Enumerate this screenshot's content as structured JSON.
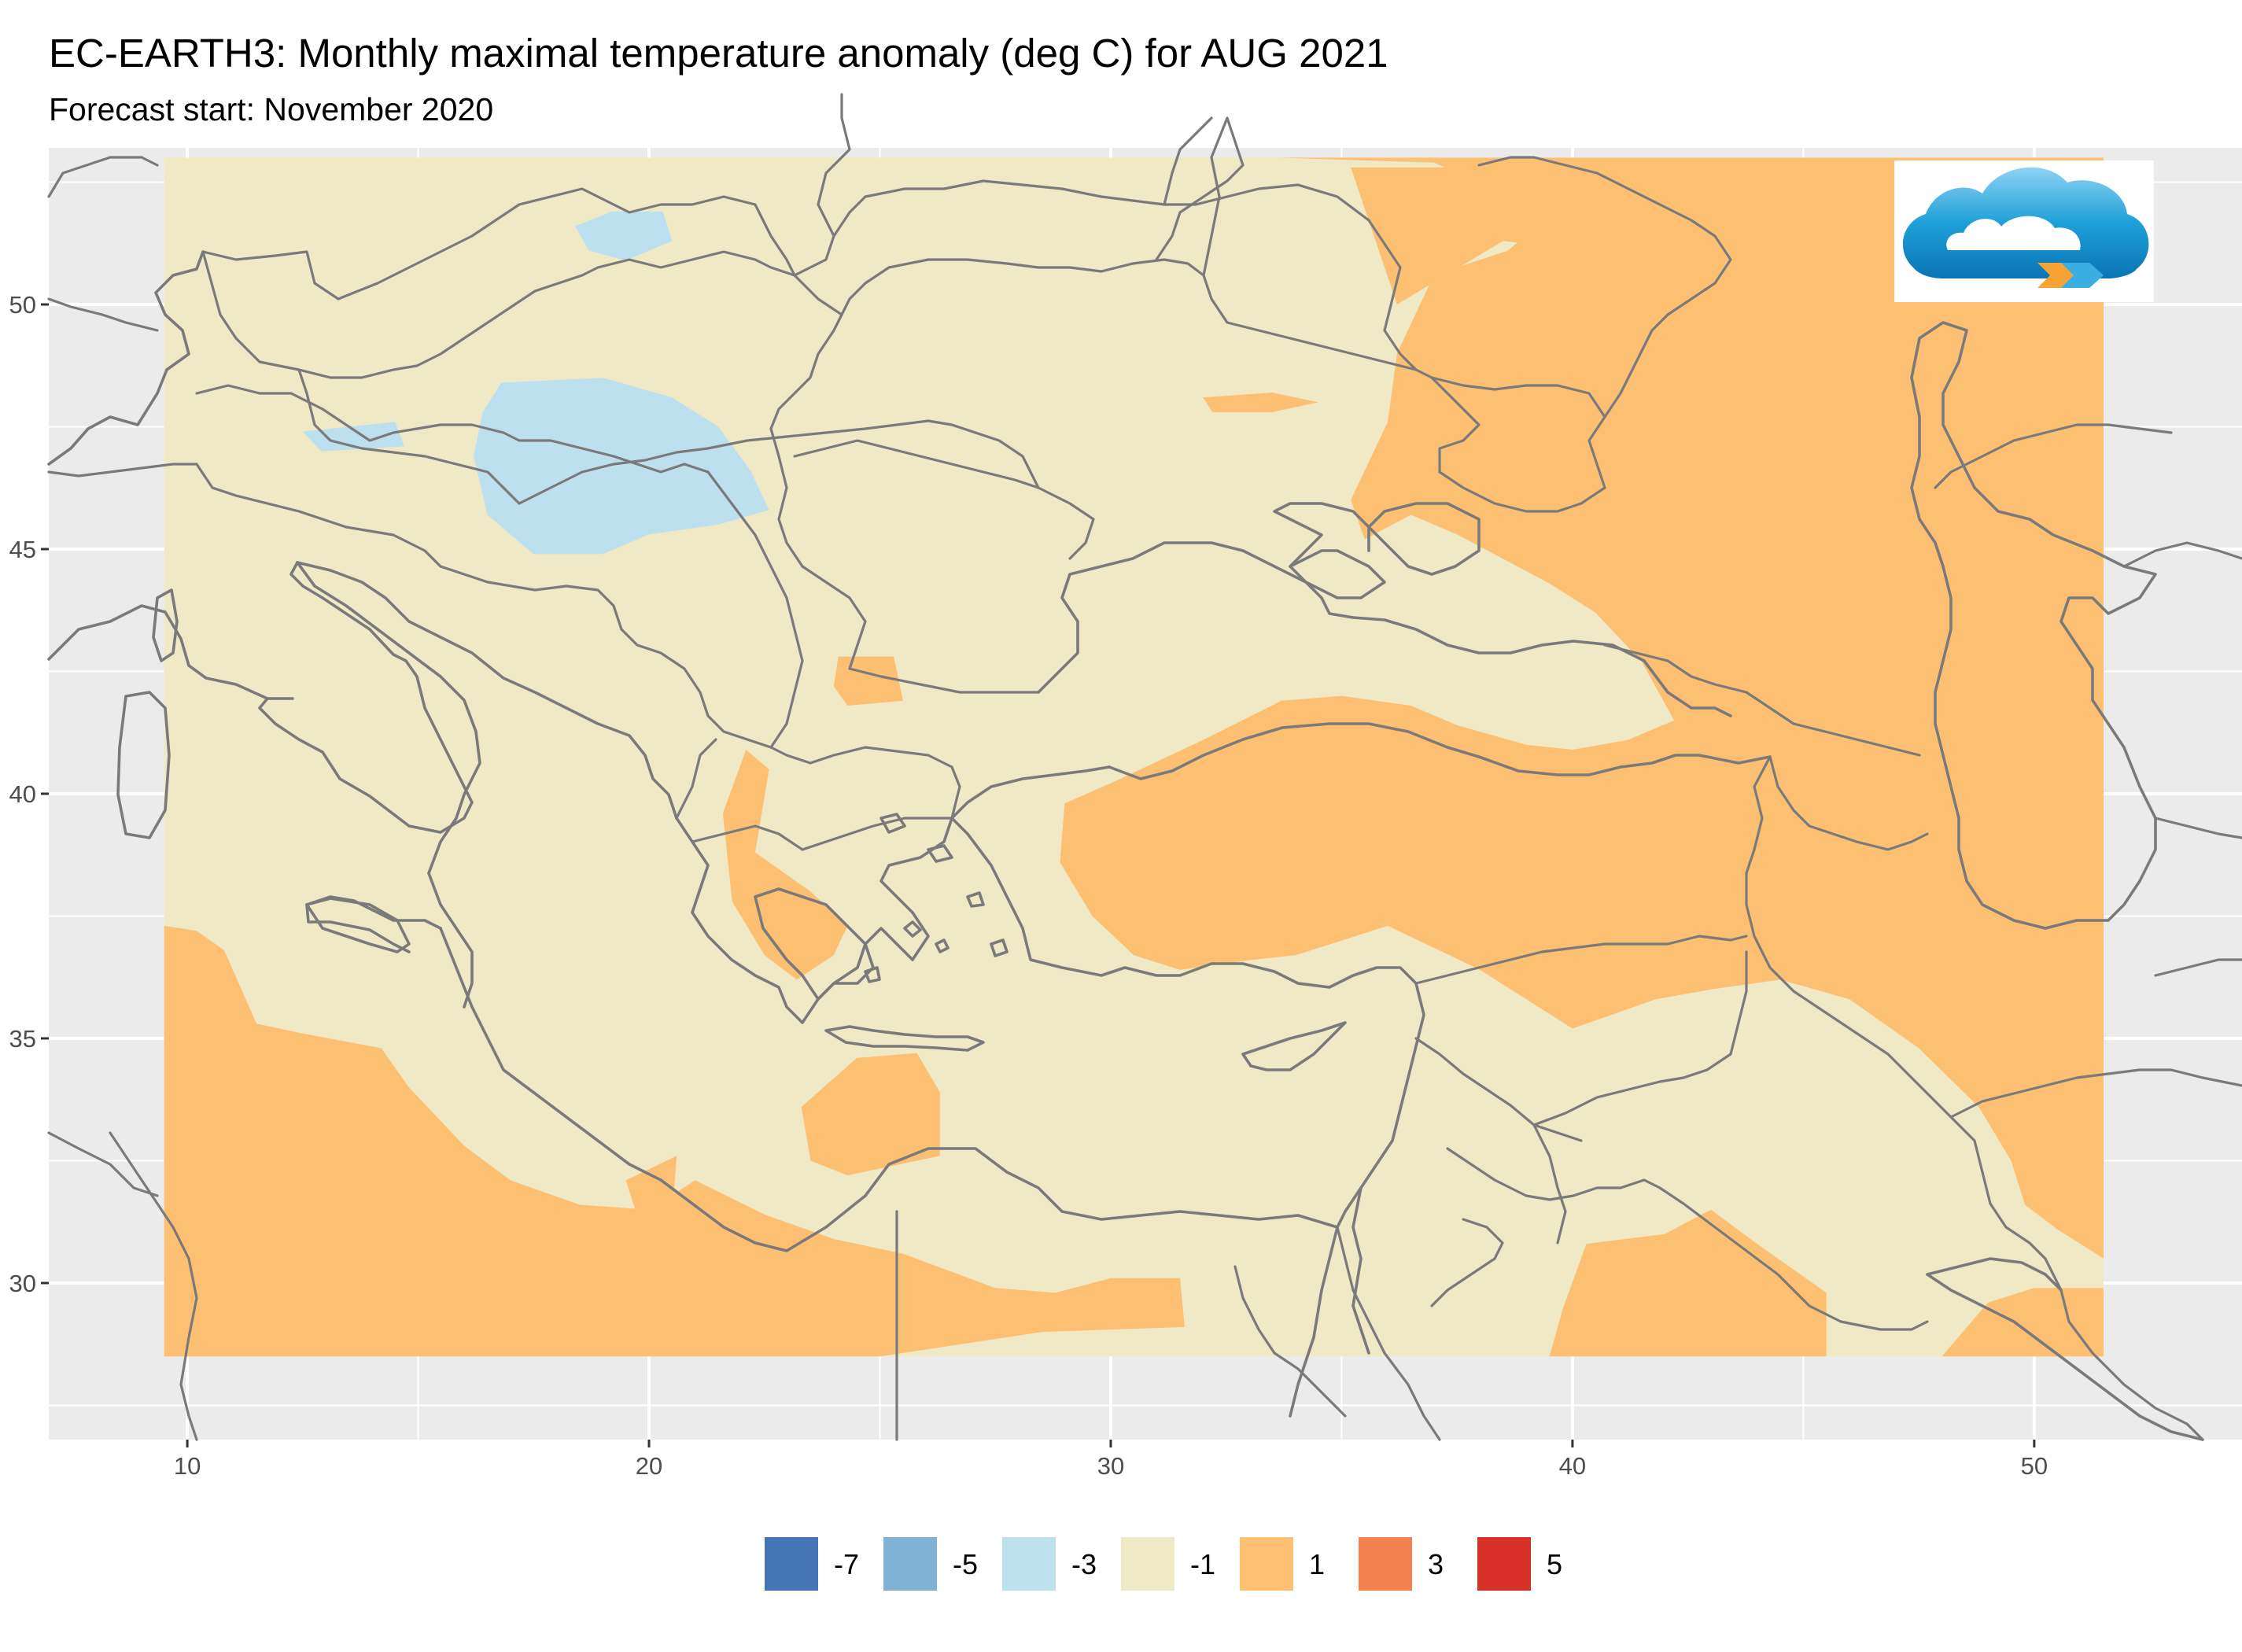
{
  "header": {
    "title": "EC-EARTH3: Monthly maximal temperature anomaly (deg C) for AUG 2021",
    "subtitle": "Forecast start: November 2020"
  },
  "map": {
    "x_axis": {
      "ticks": [
        10,
        20,
        30,
        40,
        50
      ],
      "range": [
        7,
        54.5
      ]
    },
    "y_axis": {
      "ticks": [
        30,
        35,
        40,
        45,
        50
      ],
      "range": [
        26.8,
        53.2
      ]
    },
    "grid": true,
    "panel_color": "#ebebeb",
    "data_extent": {
      "lon": [
        9.5,
        51.5
      ],
      "lat": [
        28.5,
        53.0
      ]
    },
    "logo": "cloud-logo"
  },
  "legend": {
    "position": "bottom",
    "items": [
      {
        "label": "-7",
        "color": "#4575b4"
      },
      {
        "label": "-5",
        "color": "#7fb2d5"
      },
      {
        "label": "-3",
        "color": "#bde0ef"
      },
      {
        "label": "-1",
        "color": "#efe9c6"
      },
      {
        "label": "1",
        "color": "#fdbf72"
      },
      {
        "label": "3",
        "color": "#f58150"
      },
      {
        "label": "5",
        "color": "#d73027"
      }
    ]
  },
  "chart_data": {
    "type": "heatmap",
    "title": "EC-EARTH3: Monthly maximal temperature anomaly (deg C) for AUG 2021",
    "subtitle": "Forecast start: November 2020",
    "xlabel": "",
    "ylabel": "",
    "xlim": [
      7,
      54.5
    ],
    "ylim": [
      26.8,
      53.2
    ],
    "x_ticks": [
      10,
      20,
      30,
      40,
      50
    ],
    "y_ticks": [
      30,
      35,
      40,
      45,
      50
    ],
    "base_level": "-1",
    "regions": [
      {
        "level": "1",
        "lonlat": [
          [
            33.6,
            53
          ],
          [
            51.5,
            53
          ],
          [
            51.5,
            28.5
          ],
          [
            45.5,
            28.5
          ],
          [
            45.5,
            29.8
          ],
          [
            44,
            30.8
          ],
          [
            43,
            31.5
          ],
          [
            42,
            31
          ],
          [
            40.3,
            30.8
          ],
          [
            39.8,
            29.5
          ],
          [
            39.5,
            28.5
          ],
          [
            48,
            28.5
          ],
          [
            49,
            29.6
          ],
          [
            50,
            29.9
          ],
          [
            51.5,
            29.9
          ],
          [
            51.5,
            30.5
          ],
          [
            50.5,
            31.1
          ],
          [
            49.8,
            31.6
          ],
          [
            49.5,
            32.5
          ],
          [
            48.8,
            33.6
          ],
          [
            47.5,
            34.8
          ],
          [
            46,
            35.8
          ],
          [
            44.5,
            36.2
          ],
          [
            43,
            36
          ],
          [
            41.8,
            35.8
          ],
          [
            40,
            35.2
          ],
          [
            38,
            36.4
          ],
          [
            36,
            37.3
          ],
          [
            34,
            36.7
          ],
          [
            33,
            36.6
          ],
          [
            31.5,
            36.4
          ],
          [
            30.5,
            36.7
          ],
          [
            29.6,
            37.5
          ],
          [
            28.9,
            38.6
          ],
          [
            29,
            39.8
          ],
          [
            30.2,
            40.3
          ],
          [
            32,
            41.1
          ],
          [
            33.7,
            41.9
          ],
          [
            35,
            42
          ],
          [
            36.5,
            41.8
          ],
          [
            37.5,
            41.4
          ],
          [
            39,
            41
          ],
          [
            40,
            40.9
          ],
          [
            41.2,
            41.1
          ],
          [
            42.2,
            41.5
          ],
          [
            41.5,
            42.7
          ],
          [
            40.5,
            43.7
          ],
          [
            39.5,
            44.3
          ],
          [
            38.5,
            44.8
          ],
          [
            37.5,
            45.3
          ],
          [
            36.5,
            45.7
          ],
          [
            35.5,
            45.2
          ],
          [
            35.2,
            46
          ],
          [
            36,
            47.6
          ],
          [
            36.2,
            49
          ],
          [
            37,
            50.6
          ],
          [
            38.6,
            51.1
          ],
          [
            39.7,
            52
          ],
          [
            38.5,
            52.3
          ],
          [
            37,
            52.9
          ]
        ]
      },
      {
        "level": "1",
        "lonlat": [
          [
            35.2,
            52.8
          ],
          [
            41,
            52.8
          ],
          [
            41,
            51
          ],
          [
            38.5,
            51.3
          ],
          [
            36.2,
            50
          ]
        ]
      },
      {
        "level": "1",
        "lonlat": [
          [
            9.5,
            37.3
          ],
          [
            10.2,
            37.2
          ],
          [
            10.8,
            36.8
          ],
          [
            11.5,
            35.3
          ],
          [
            12.5,
            35.1
          ],
          [
            14.2,
            34.8
          ],
          [
            14.8,
            34
          ],
          [
            16,
            32.8
          ],
          [
            17,
            32.1
          ],
          [
            18.5,
            31.6
          ],
          [
            20,
            31.5
          ],
          [
            21,
            32.1
          ],
          [
            22.5,
            31.4
          ],
          [
            24,
            30.9
          ],
          [
            25.5,
            30.6
          ],
          [
            27.5,
            29.9
          ],
          [
            28.8,
            29.8
          ],
          [
            30,
            30.1
          ],
          [
            31.5,
            30.1
          ],
          [
            31.6,
            29.1
          ],
          [
            28.5,
            29
          ],
          [
            25,
            28.5
          ],
          [
            9.5,
            28.5
          ]
        ]
      },
      {
        "level": "1",
        "lonlat": [
          [
            19.5,
            32.1
          ],
          [
            20.6,
            32.6
          ],
          [
            20.5,
            31.4
          ],
          [
            19.8,
            31.2
          ]
        ]
      },
      {
        "level": "1",
        "lonlat": [
          [
            23.3,
            33.6
          ],
          [
            24.5,
            34.6
          ],
          [
            25.8,
            34.7
          ],
          [
            26.3,
            33.9
          ],
          [
            26.3,
            32.6
          ],
          [
            24.3,
            32.2
          ],
          [
            23.5,
            32.5
          ]
        ]
      },
      {
        "level": "1",
        "lonlat": [
          [
            22.3,
            38.8
          ],
          [
            22.9,
            38.4
          ],
          [
            23.5,
            38
          ],
          [
            24.3,
            37.3
          ],
          [
            24,
            36.7
          ],
          [
            23.2,
            36.2
          ],
          [
            22.5,
            36.7
          ],
          [
            21.8,
            37.8
          ],
          [
            21.6,
            39.6
          ],
          [
            22.1,
            40.9
          ],
          [
            22.6,
            40.5
          ]
        ]
      },
      {
        "level": "1",
        "lonlat": [
          [
            24.1,
            42.8
          ],
          [
            25.3,
            42.8
          ],
          [
            25.5,
            41.9
          ],
          [
            24.3,
            41.8
          ],
          [
            24,
            42.2
          ]
        ]
      },
      {
        "level": "1",
        "lonlat": [
          [
            32,
            48.1
          ],
          [
            33.5,
            48.2
          ],
          [
            34.5,
            48
          ],
          [
            33.5,
            47.8
          ],
          [
            32.2,
            47.8
          ]
        ]
      },
      {
        "level": "-3",
        "lonlat": [
          [
            16.8,
            48.4
          ],
          [
            19,
            48.5
          ],
          [
            20.5,
            48.1
          ],
          [
            21.5,
            47.5
          ],
          [
            22.2,
            46.6
          ],
          [
            22.6,
            45.8
          ],
          [
            21.5,
            45.5
          ],
          [
            20,
            45.3
          ],
          [
            19,
            44.9
          ],
          [
            17.5,
            44.9
          ],
          [
            16.5,
            45.7
          ],
          [
            16.2,
            46.9
          ],
          [
            16.4,
            47.8
          ]
        ]
      },
      {
        "level": "-3",
        "lonlat": [
          [
            18.4,
            51.6
          ],
          [
            19.2,
            51.9
          ],
          [
            20.3,
            51.9
          ],
          [
            20.5,
            51.3
          ],
          [
            19.5,
            50.9
          ],
          [
            18.7,
            51.1
          ]
        ]
      },
      {
        "level": "-3",
        "lonlat": [
          [
            12.5,
            47.4
          ],
          [
            14.5,
            47.6
          ],
          [
            14.7,
            47.1
          ],
          [
            12.9,
            47
          ]
        ]
      }
    ]
  }
}
